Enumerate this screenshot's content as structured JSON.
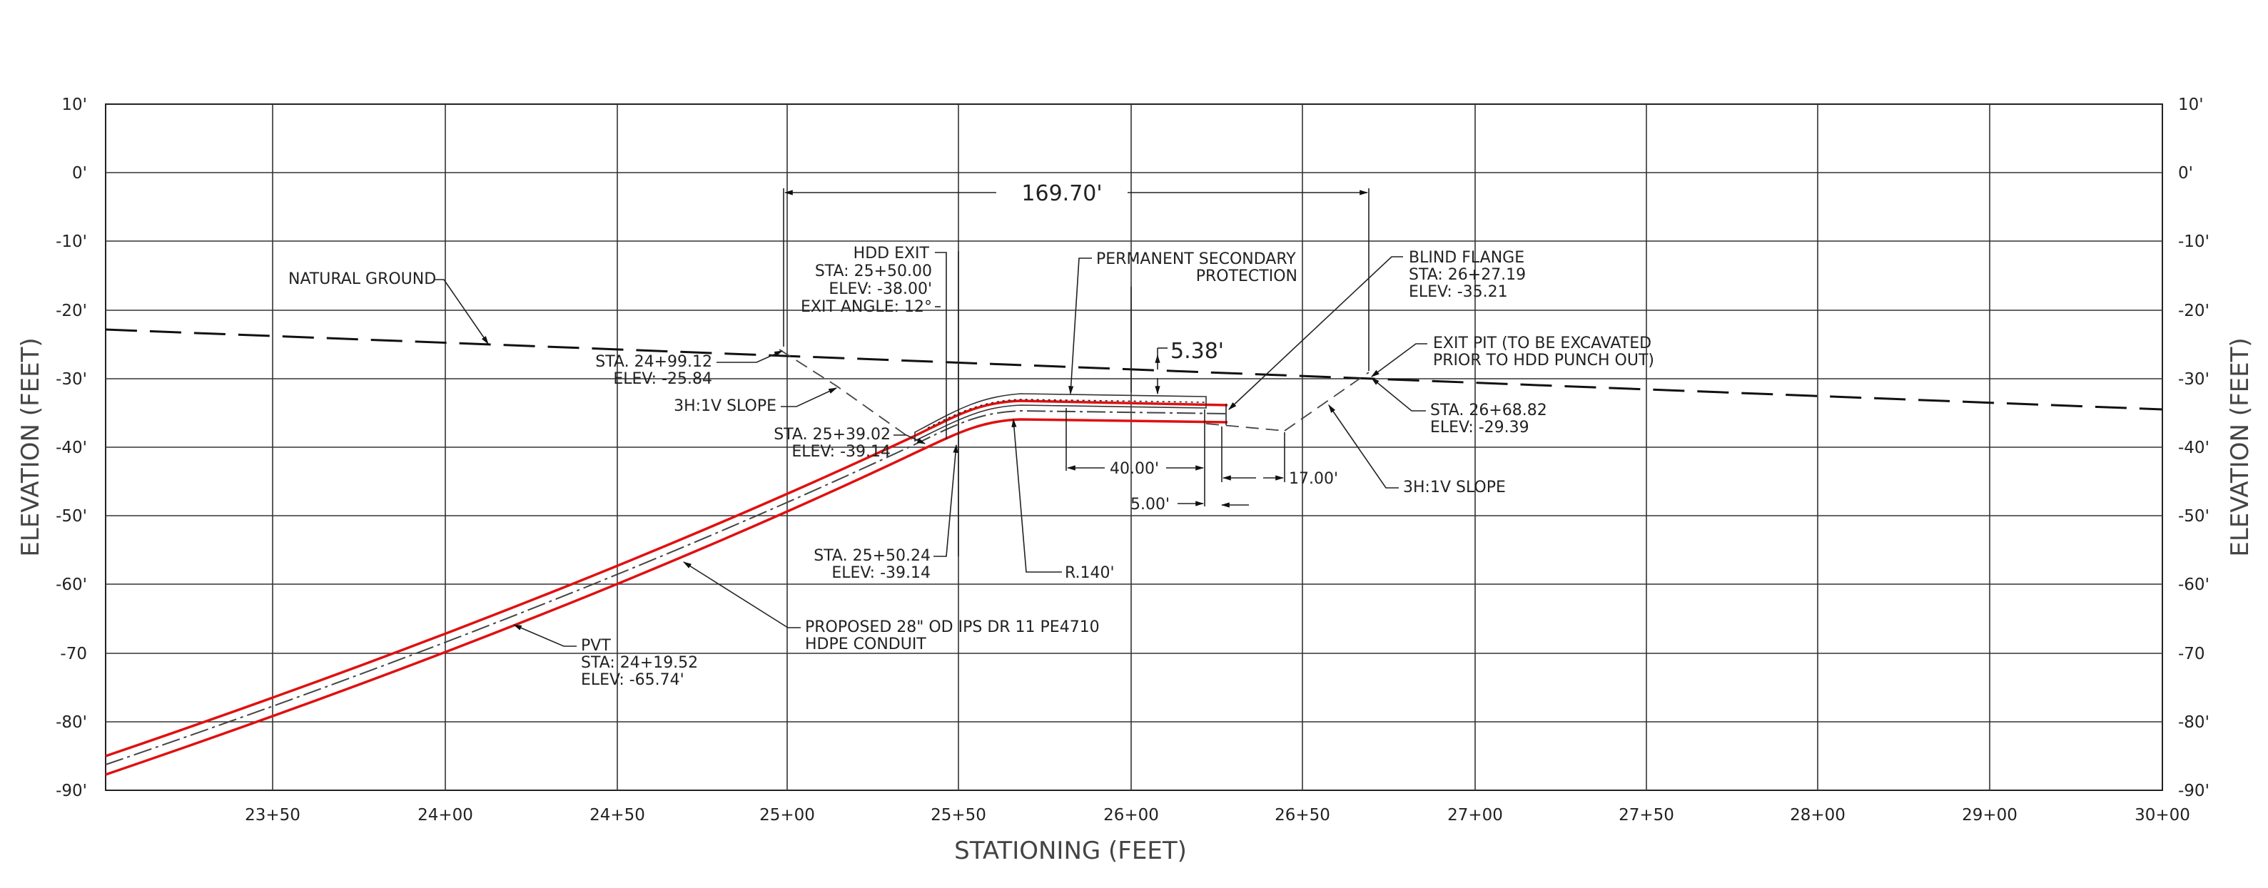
{
  "axes": {
    "x_title": "STATIONING (FEET)",
    "y_title_left": "ELEVATION (FEET)",
    "y_title_right": "ELEVATION (FEET)",
    "y_ticks": [
      "10'",
      "0'",
      "-10'",
      "-20'",
      "-30'",
      "-40'",
      "-50'",
      "-60'",
      "-70",
      "-80'",
      "-90'"
    ],
    "x_ticks": [
      "23+50",
      "24+00",
      "24+50",
      "25+00",
      "25+50",
      "26+00",
      "26+50",
      "27+00",
      "27+50",
      "28+00",
      "29+00",
      "30+00"
    ]
  },
  "labels": {
    "natural_ground": "NATURAL GROUND",
    "hdd_exit": [
      "HDD EXIT",
      "STA: 25+50.00",
      "ELEV: -38.00'",
      "EXIT ANGLE: 12°"
    ],
    "permanent_protection": [
      "PERMANENT SECONDARY",
      "PROTECTION"
    ],
    "blind_flange": [
      "BLIND FLANGE",
      "STA: 26+27.19",
      "ELEV: -35.21"
    ],
    "exit_pit": [
      "EXIT PIT (TO BE EXCAVATED",
      "PRIOR TO HDD PUNCH OUT)"
    ],
    "sta_2499": [
      "STA. 24+99.12",
      "ELEV: -25.84"
    ],
    "slope_left": "3H:1V SLOPE",
    "sta_2539": [
      "STA. 25+39.02",
      "ELEV: -39.14"
    ],
    "sta_2668": [
      "STA. 26+68.82",
      "ELEV: -29.39"
    ],
    "slope_right": "3H:1V SLOPE",
    "sta_2550": [
      "STA. 25+50.24",
      "ELEV: -39.14"
    ],
    "radius": "R.140'",
    "proposed_conduit": [
      "PROPOSED 28\" OD IPS DR 11 PE4710",
      "HDPE CONDUIT"
    ],
    "pvt": [
      "PVT",
      "STA: 24+19.52",
      "ELEV: -65.74'"
    ]
  },
  "dimensions": {
    "overall": "169.70'",
    "cover": "5.38'",
    "protection_length": "40.00'",
    "offset": "17.00'",
    "gap": "5.00'"
  },
  "colors": {
    "pipe": "#e01010",
    "ink": "#222222"
  }
}
